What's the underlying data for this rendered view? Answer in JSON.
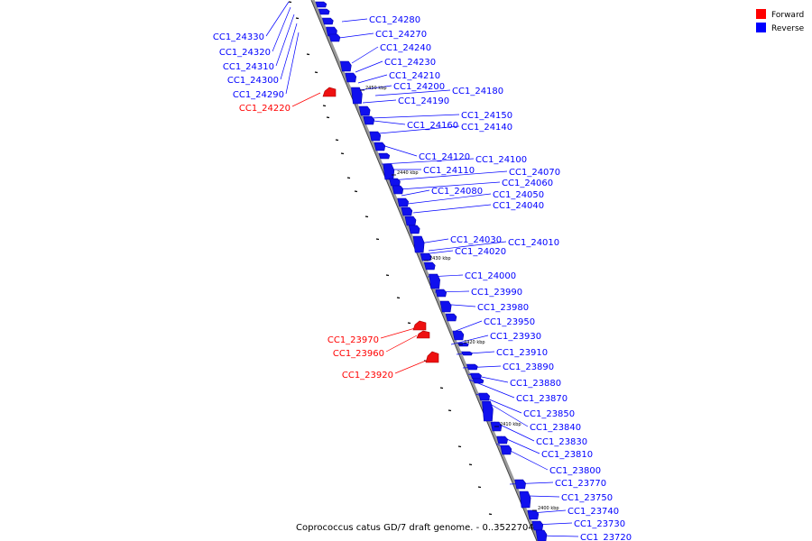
{
  "legend": {
    "items": [
      {
        "label": "Forward",
        "color": "#ff0000"
      },
      {
        "label": "Reverse",
        "color": "#0000ff"
      }
    ]
  },
  "caption": "Coprococcus catus GD/7 draft genome. - 0..3522704",
  "axis": {
    "color": "#888888",
    "kbp_marks": [
      "2450 kbp",
      "2440 kbp",
      "2430 kbp",
      "2420 kbp",
      "2410 kbp",
      "2400 kbp"
    ]
  },
  "genes": {
    "reverse": [
      "CC1_24280",
      "CC1_24270",
      "CC1_24240",
      "CC1_24230",
      "CC1_24210",
      "CC1_24200",
      "CC1_24190",
      "CC1_24180",
      "CC1_24150",
      "CC1_24160",
      "CC1_24140",
      "CC1_24120",
      "CC1_24100",
      "CC1_24110",
      "CC1_24070",
      "CC1_24060",
      "CC1_24080",
      "CC1_24050",
      "CC1_24040",
      "CC1_24030",
      "CC1_24010",
      "CC1_24020",
      "CC1_24000",
      "CC1_23990",
      "CC1_23980",
      "CC1_23950",
      "CC1_23930",
      "CC1_23910",
      "CC1_23890",
      "CC1_23880",
      "CC1_23870",
      "CC1_23850",
      "CC1_23840",
      "CC1_23830",
      "CC1_23810",
      "CC1_23800",
      "CC1_23770",
      "CC1_23750",
      "CC1_23740",
      "CC1_23730",
      "CC1_23720"
    ],
    "left_reverse": [
      "CC1_24330",
      "CC1_24320",
      "CC1_24310",
      "CC1_24300",
      "CC1_24290"
    ],
    "forward": [
      "CC1_24220",
      "CC1_23970",
      "CC1_23960",
      "CC1_23920"
    ]
  }
}
